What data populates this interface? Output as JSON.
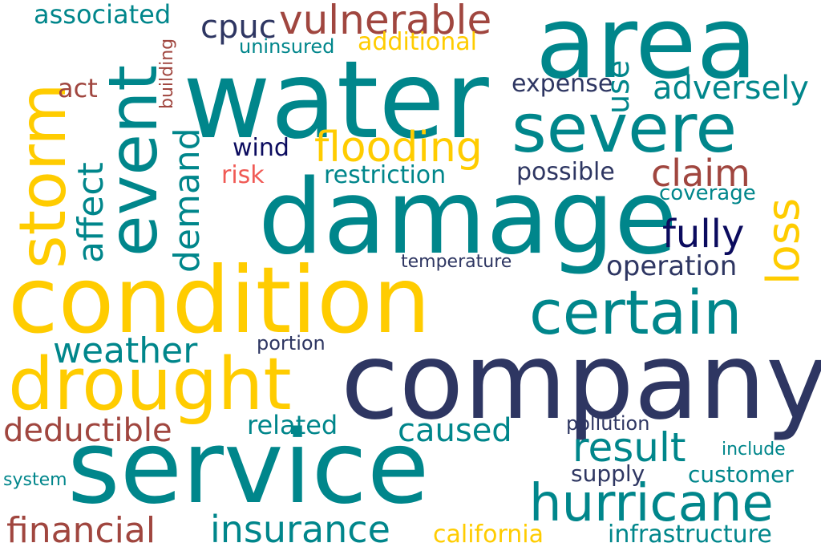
{
  "palette": {
    "teal": "#00868B",
    "yellow": "#FFCC00",
    "navy": "#2E3662",
    "brown": "#A0463F",
    "darknavy": "#0B0B5E",
    "salmon": "#F05A55"
  },
  "words": [
    {
      "text": "water",
      "color": "#00868B"
    },
    {
      "text": "area",
      "color": "#00868B"
    },
    {
      "text": "damage",
      "color": "#00868B"
    },
    {
      "text": "company",
      "color": "#2E3662"
    },
    {
      "text": "service",
      "color": "#00868B"
    },
    {
      "text": "condition",
      "color": "#FFCC00"
    },
    {
      "text": "event",
      "color": "#00868B"
    },
    {
      "text": "storm",
      "color": "#FFCC00"
    },
    {
      "text": "severe",
      "color": "#00868B"
    },
    {
      "text": "drought",
      "color": "#FFCC00"
    },
    {
      "text": "certain",
      "color": "#00868B"
    },
    {
      "text": "hurricane",
      "color": "#00868B"
    },
    {
      "text": "insurance",
      "color": "#00868B"
    },
    {
      "text": "financial",
      "color": "#A0463F"
    },
    {
      "text": "flooding",
      "color": "#FFCC00"
    },
    {
      "text": "vulnerable",
      "color": "#A0463F"
    },
    {
      "text": "claim",
      "color": "#A0463F"
    },
    {
      "text": "loss",
      "color": "#FFCC00"
    },
    {
      "text": "affect",
      "color": "#00868B"
    },
    {
      "text": "demand",
      "color": "#00868B"
    },
    {
      "text": "result",
      "color": "#00868B"
    },
    {
      "text": "deductible",
      "color": "#A0463F"
    },
    {
      "text": "weather",
      "color": "#00868B"
    },
    {
      "text": "caused",
      "color": "#00868B"
    },
    {
      "text": "fully",
      "color": "#0B0B5E"
    },
    {
      "text": "adversely",
      "color": "#00868B"
    },
    {
      "text": "use",
      "color": "#00868B"
    },
    {
      "text": "cpuc",
      "color": "#2E3662"
    },
    {
      "text": "associated",
      "color": "#00868B"
    },
    {
      "text": "additional",
      "color": "#FFCC00"
    },
    {
      "text": "uninsured",
      "color": "#00868B"
    },
    {
      "text": "act",
      "color": "#A0463F"
    },
    {
      "text": "building",
      "color": "#A0463F"
    },
    {
      "text": "expense",
      "color": "#2E3662"
    },
    {
      "text": "wind",
      "color": "#0B0B5E"
    },
    {
      "text": "risk",
      "color": "#F05A55"
    },
    {
      "text": "restriction",
      "color": "#00868B"
    },
    {
      "text": "possible",
      "color": "#2E3662"
    },
    {
      "text": "coverage",
      "color": "#00868B"
    },
    {
      "text": "operation",
      "color": "#2E3662"
    },
    {
      "text": "temperature",
      "color": "#2E3662"
    },
    {
      "text": "portion",
      "color": "#2E3662"
    },
    {
      "text": "related",
      "color": "#00868B"
    },
    {
      "text": "pollution",
      "color": "#2E3662"
    },
    {
      "text": "include",
      "color": "#00868B"
    },
    {
      "text": "supply",
      "color": "#2E3662"
    },
    {
      "text": "customer",
      "color": "#00868B"
    },
    {
      "text": "system",
      "color": "#00868B"
    },
    {
      "text": "california",
      "color": "#FFCC00"
    },
    {
      "text": "infrastructure",
      "color": "#00868B"
    }
  ]
}
